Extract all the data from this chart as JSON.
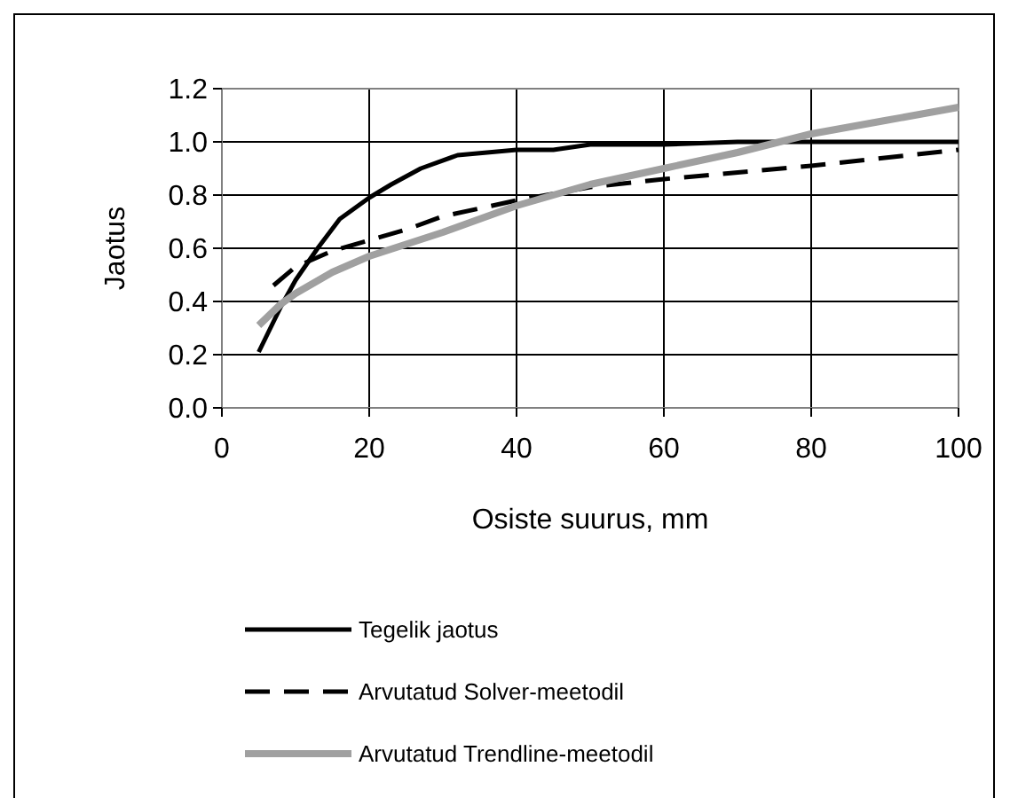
{
  "chart_data": {
    "type": "line",
    "xlabel": "Osiste suurus, mm",
    "ylabel": "Jaotus",
    "xlim": [
      0,
      100
    ],
    "xticks": [
      0,
      20,
      40,
      60,
      80,
      100
    ],
    "ylim": [
      0,
      1.2
    ],
    "yticks": [
      {
        "value": 0,
        "label": "0.0"
      },
      {
        "value": 0.2,
        "label": "0.2"
      },
      {
        "value": 0.4,
        "label": "0.4"
      },
      {
        "value": 0.6,
        "label": "0.6"
      },
      {
        "value": 0.8,
        "label": "0.8"
      },
      {
        "value": 1,
        "label": "1.0"
      },
      {
        "value": 1.2,
        "label": "1.2"
      }
    ],
    "grid": true,
    "legend": "bottom",
    "series": [
      {
        "name": "Tegelik jaotus",
        "color": "#000000",
        "line_style": "solid",
        "x": [
          5,
          8,
          10,
          13,
          16,
          20,
          23,
          27,
          32,
          40,
          45,
          50,
          60,
          70,
          80,
          100
        ],
        "values": [
          0.21,
          0.38,
          0.48,
          0.6,
          0.71,
          0.79,
          0.84,
          0.9,
          0.95,
          0.97,
          0.97,
          0.99,
          0.99,
          1.0,
          1.0,
          1.0
        ]
      },
      {
        "name": "Arvutatud Solver-meetodil",
        "color": "#000000",
        "line_style": "dashed",
        "x": [
          7,
          10,
          15,
          20,
          25,
          30,
          40,
          50,
          60,
          80,
          100
        ],
        "values": [
          0.46,
          0.53,
          0.59,
          0.63,
          0.67,
          0.72,
          0.78,
          0.83,
          0.86,
          0.91,
          0.97
        ]
      },
      {
        "name": "Arvutatud Trendline-meetodil",
        "color": "#a0a0a0",
        "line_style": "solid",
        "x": [
          5,
          8,
          10,
          15,
          20,
          30,
          40,
          50,
          60,
          70,
          80,
          90,
          100
        ],
        "values": [
          0.31,
          0.39,
          0.43,
          0.51,
          0.57,
          0.66,
          0.76,
          0.84,
          0.9,
          0.96,
          1.03,
          1.08,
          1.13
        ]
      }
    ]
  }
}
